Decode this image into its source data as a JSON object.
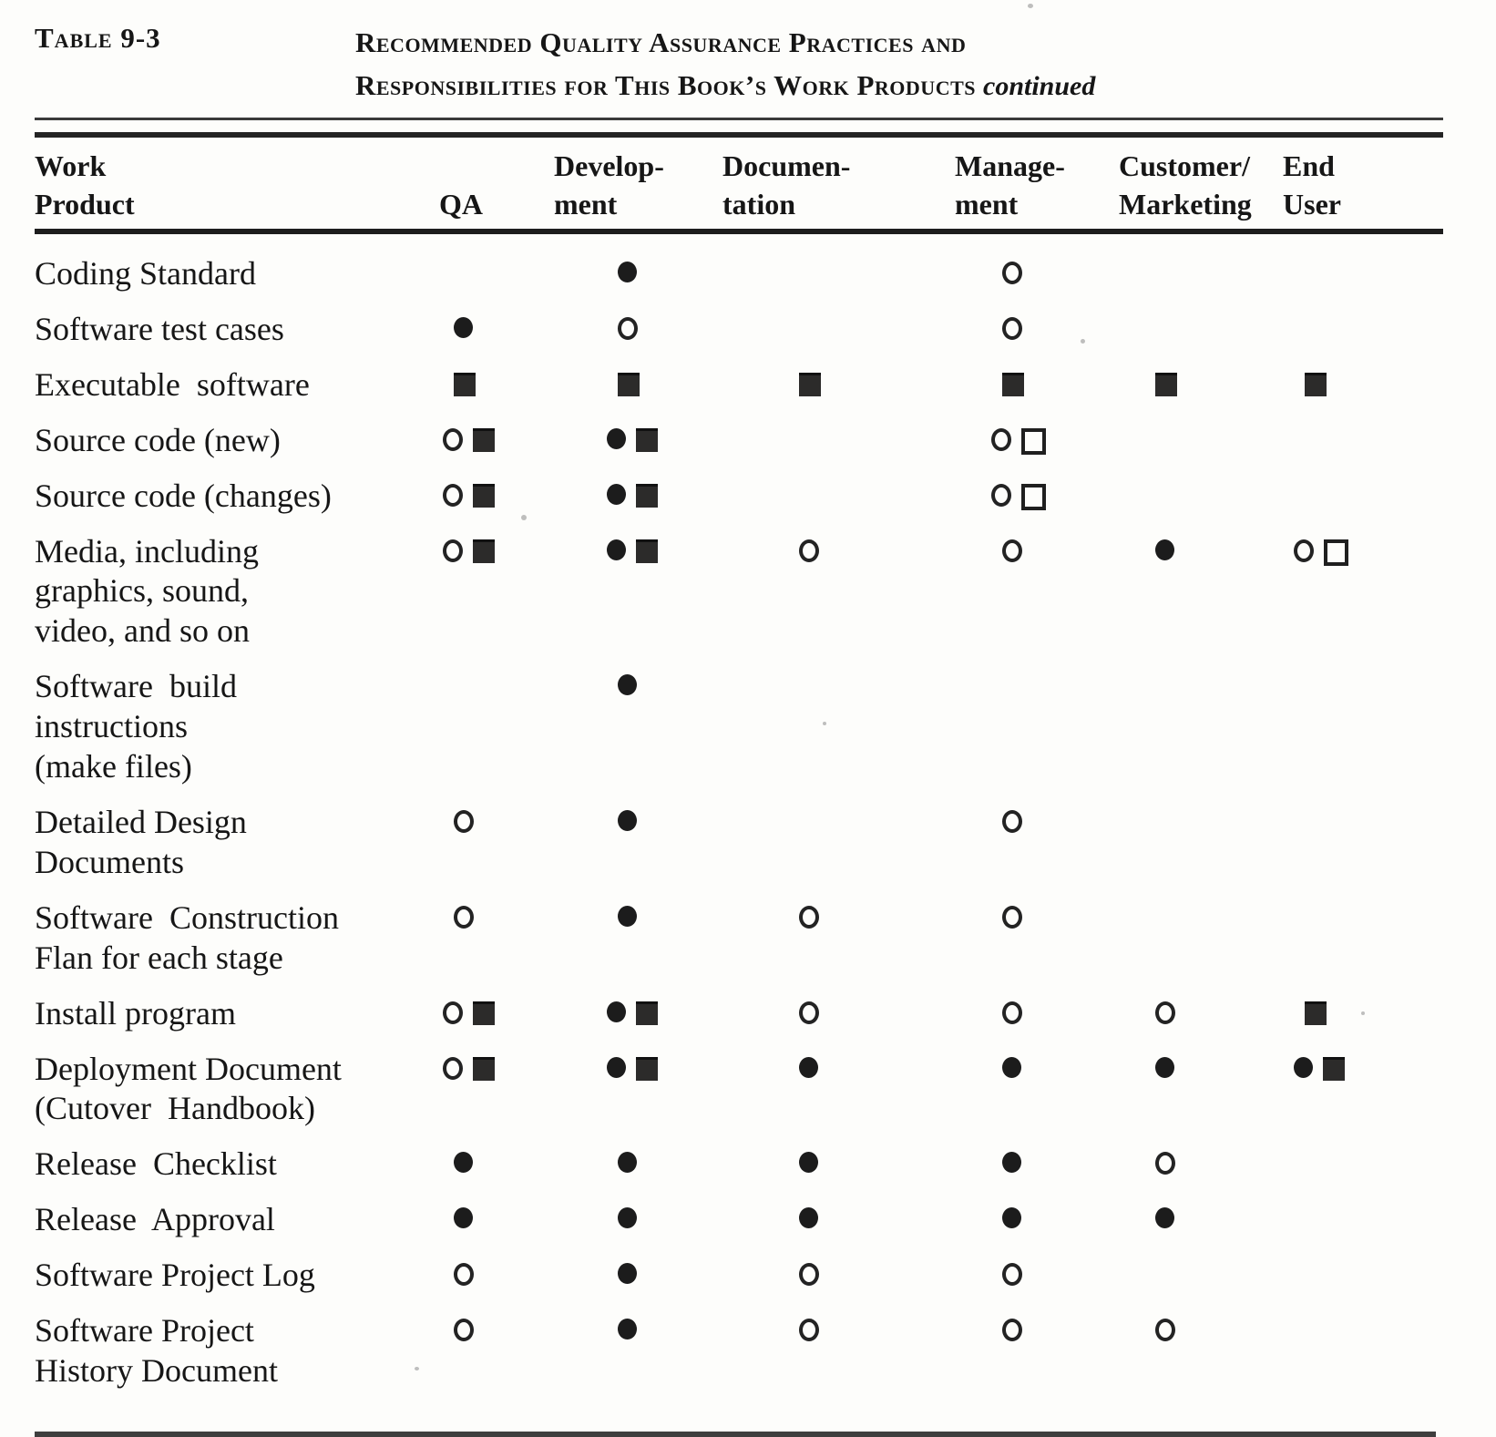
{
  "caption": {
    "table_label": "Table 9-3",
    "title_line1": "Recommended Quality Assurance Practices and",
    "title_line2": "Responsibilities for This Book’s Work Products",
    "title_continued": "continued"
  },
  "symbol_glyphs": {
    "filled-circle": "●",
    "open-circle": "○",
    "filled-square": "■",
    "open-square": "□"
  },
  "columns": [
    {
      "key": "work_product",
      "line1": "Work",
      "line2": "Product"
    },
    {
      "key": "qa",
      "line1": "",
      "line2": "QA"
    },
    {
      "key": "development",
      "line1": "Develop-",
      "line2": "ment"
    },
    {
      "key": "documentation",
      "line1": "Documen-",
      "line2": "tation"
    },
    {
      "key": "management",
      "line1": "Manage-",
      "line2": "ment"
    },
    {
      "key": "customer_marketing",
      "line1": "Customer/",
      "line2": "Marketing"
    },
    {
      "key": "end_user",
      "line1": "End",
      "line2": "User"
    }
  ],
  "rows": [
    {
      "work_product": "Coding Standard",
      "qa": [],
      "development": [
        "filled-circle"
      ],
      "documentation": [],
      "management": [
        "open-circle"
      ],
      "customer_marketing": [],
      "end_user": []
    },
    {
      "work_product": "Software test cases",
      "qa": [
        "filled-circle"
      ],
      "development": [
        "open-circle"
      ],
      "documentation": [],
      "management": [
        "open-circle"
      ],
      "customer_marketing": [],
      "end_user": []
    },
    {
      "work_product": "Executable  software",
      "qa": [
        "filled-square"
      ],
      "development": [
        "filled-square"
      ],
      "documentation": [
        "filled-square"
      ],
      "management": [
        "filled-square"
      ],
      "customer_marketing": [
        "filled-square"
      ],
      "end_user": [
        "filled-square"
      ]
    },
    {
      "work_product": "Source code (new)",
      "qa": [
        "open-circle",
        "filled-square"
      ],
      "development": [
        "filled-circle",
        "filled-square"
      ],
      "documentation": [],
      "management": [
        "open-circle",
        "open-square"
      ],
      "customer_marketing": [],
      "end_user": []
    },
    {
      "work_product": "Source code (changes)",
      "qa": [
        "open-circle",
        "filled-square"
      ],
      "development": [
        "filled-circle",
        "filled-square"
      ],
      "documentation": [],
      "management": [
        "open-circle",
        "open-square"
      ],
      "customer_marketing": [],
      "end_user": []
    },
    {
      "work_product": "Media, including\ngraphics, sound,\nvideo, and so on",
      "qa": [
        "open-circle",
        "filled-square"
      ],
      "development": [
        "filled-circle",
        "filled-square"
      ],
      "documentation": [
        "open-circle"
      ],
      "management": [
        "open-circle"
      ],
      "customer_marketing": [
        "filled-circle"
      ],
      "end_user": [
        "open-circle",
        "open-square"
      ]
    },
    {
      "work_product": "Software  build\ninstructions\n(make files)",
      "qa": [],
      "development": [
        "filled-circle"
      ],
      "documentation": [],
      "management": [],
      "customer_marketing": [],
      "end_user": []
    },
    {
      "work_product": "Detailed Design\nDocuments",
      "qa": [
        "open-circle"
      ],
      "development": [
        "filled-circle"
      ],
      "documentation": [],
      "management": [
        "open-circle"
      ],
      "customer_marketing": [],
      "end_user": []
    },
    {
      "work_product": "Software  Construction\nFlan for each stage",
      "qa": [
        "open-circle"
      ],
      "development": [
        "filled-circle"
      ],
      "documentation": [
        "open-circle"
      ],
      "management": [
        "open-circle"
      ],
      "customer_marketing": [],
      "end_user": []
    },
    {
      "work_product": "Install program",
      "qa": [
        "open-circle",
        "filled-square"
      ],
      "development": [
        "filled-circle",
        "filled-square"
      ],
      "documentation": [
        "open-circle"
      ],
      "management": [
        "open-circle"
      ],
      "customer_marketing": [
        "open-circle"
      ],
      "end_user": [
        "filled-square"
      ]
    },
    {
      "work_product": "Deployment Document\n(Cutover  Handbook)",
      "qa": [
        "open-circle",
        "filled-square"
      ],
      "development": [
        "filled-circle",
        "filled-square"
      ],
      "documentation": [
        "filled-circle"
      ],
      "management": [
        "filled-circle"
      ],
      "customer_marketing": [
        "filled-circle"
      ],
      "end_user": [
        "filled-circle",
        "filled-square"
      ]
    },
    {
      "work_product": "Release  Checklist",
      "qa": [
        "filled-circle"
      ],
      "development": [
        "filled-circle"
      ],
      "documentation": [
        "filled-circle"
      ],
      "management": [
        "filled-circle"
      ],
      "customer_marketing": [
        "open-circle"
      ],
      "end_user": []
    },
    {
      "work_product": "Release  Approval",
      "qa": [
        "filled-circle"
      ],
      "development": [
        "filled-circle"
      ],
      "documentation": [
        "filled-circle"
      ],
      "management": [
        "filled-circle"
      ],
      "customer_marketing": [
        "filled-circle"
      ],
      "end_user": []
    },
    {
      "work_product": "Software Project Log",
      "qa": [
        "open-circle"
      ],
      "development": [
        "filled-circle"
      ],
      "documentation": [
        "open-circle"
      ],
      "management": [
        "open-circle"
      ],
      "customer_marketing": [],
      "end_user": []
    },
    {
      "work_product": "Software Project\nHistory Document",
      "qa": [
        "open-circle"
      ],
      "development": [
        "filled-circle"
      ],
      "documentation": [
        "open-circle"
      ],
      "management": [
        "open-circle"
      ],
      "customer_marketing": [
        "open-circle"
      ],
      "end_user": []
    }
  ]
}
